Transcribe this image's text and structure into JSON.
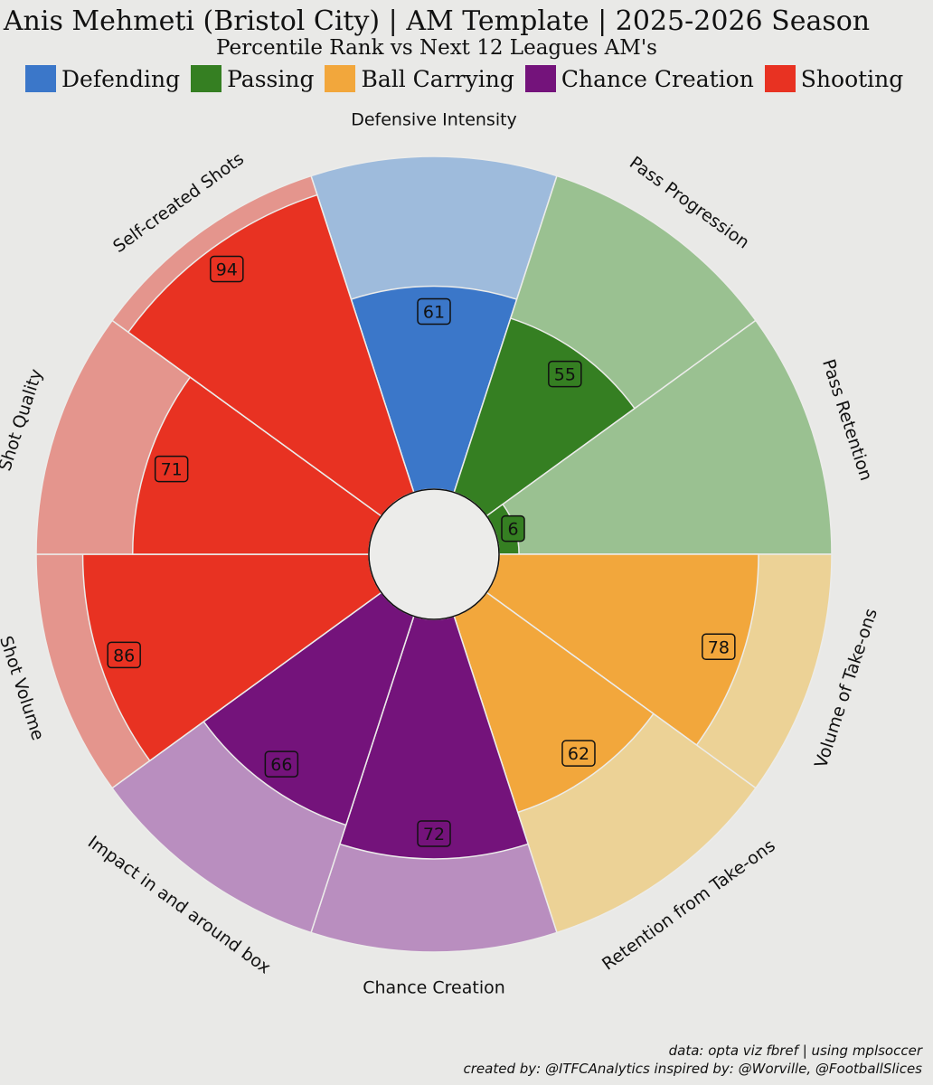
{
  "header": {
    "title": "Anis Mehmeti (Bristol City) | AM Template | 2025-2026 Season",
    "subtitle": "Percentile Rank vs Next 12 Leagues AM's"
  },
  "legend": [
    {
      "label": "Defending",
      "color": "#3b77c9"
    },
    {
      "label": "Passing",
      "color": "#357f22"
    },
    {
      "label": "Ball Carrying",
      "color": "#f2a73c"
    },
    {
      "label": "Chance Creation",
      "color": "#74137b"
    },
    {
      "label": "Shooting",
      "color": "#e83222"
    }
  ],
  "chart_data": {
    "type": "pie",
    "metrics": [
      {
        "label": "Defensive Intensity",
        "value": 61,
        "group": "Defending",
        "color": "#3b77c9",
        "light": "#9ebbdc"
      },
      {
        "label": "Pass Progression",
        "value": 55,
        "group": "Passing",
        "color": "#357f22",
        "light": "#9ac191"
      },
      {
        "label": "Pass Retention",
        "value": 6,
        "group": "Passing",
        "color": "#357f22",
        "light": "#9ac191"
      },
      {
        "label": "Volume of Take-ons",
        "value": 78,
        "group": "Ball Carrying",
        "color": "#f2a73c",
        "light": "#ecd296"
      },
      {
        "label": "Retention from Take-ons",
        "value": 62,
        "group": "Ball Carrying",
        "color": "#f2a73c",
        "light": "#ecd296"
      },
      {
        "label": "Chance Creation",
        "value": 72,
        "group": "Chance Creation",
        "color": "#74137b",
        "light": "#b98ebf"
      },
      {
        "label": "Impact in and around box",
        "value": 66,
        "group": "Chance Creation",
        "color": "#74137b",
        "light": "#b98ebf"
      },
      {
        "label": "Shot Volume",
        "value": 86,
        "group": "Shooting",
        "color": "#e83222",
        "light": "#e4958d"
      },
      {
        "label": "Shot Quality",
        "value": 71,
        "group": "Shooting",
        "color": "#e83222",
        "light": "#e4958d"
      },
      {
        "label": "Self-created Shots",
        "value": 94,
        "group": "Shooting",
        "color": "#e83222",
        "light": "#e4958d"
      }
    ],
    "range": [
      0,
      100
    ]
  },
  "footer": {
    "line1": "data: opta viz fbref | using mplsoccer",
    "line2": "created by: @ITFCAnalytics inspired by: @Worville, @FootballSlices"
  }
}
